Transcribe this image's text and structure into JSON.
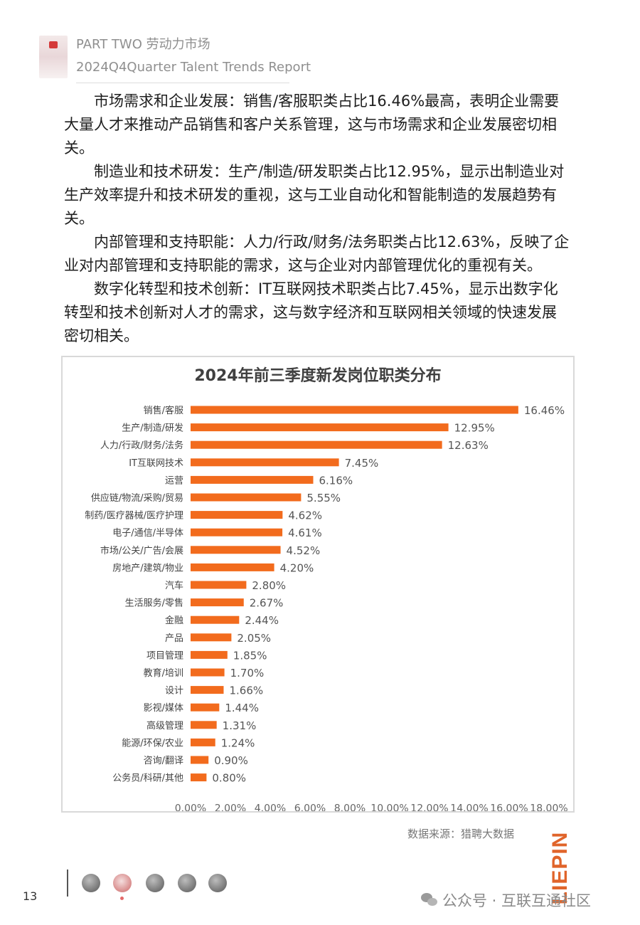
{
  "header": {
    "line1": "PART TWO 劳动力市场",
    "line2": "2024Q4Quarter Talent Trends Report"
  },
  "body": {
    "paragraphs": [
      "市场需求和企业发展：销售/客服职类占比16.46%最高，表明企业需要大量人才来推动产品销售和客户关系管理，这与市场需求和企业发展密切相关。",
      "制造业和技术研发：生产/制造/研发职类占比12.95%，显示出制造业对生产效率提升和技术研发的重视，这与工业自动化和智能制造的发展趋势有关。",
      "内部管理和支持职能：人力/行政/财务/法务职类占比12.63%，反映了企业对内部管理和支持职能的需求，这与企业对内部管理优化的重视有关。",
      "数字化转型和技术创新：IT互联网技术职类占比7.45%，显示出数字化转型和技术创新对人才的需求，这与数字经济和互联网相关领域的快速发展密切相关。"
    ]
  },
  "chart_data": {
    "type": "bar",
    "orientation": "horizontal",
    "title": "2024年前三季度新发岗位职类分布",
    "categories": [
      "销售/客服",
      "生产/制造/研发",
      "人力/行政/财务/法务",
      "IT互联网技术",
      "运营",
      "供应链/物流/采购/贸易",
      "制药/医疗器械/医疗护理",
      "电子/通信/半导体",
      "市场/公关/广告/会展",
      "房地产/建筑/物业",
      "汽车",
      "生活服务/零售",
      "金融",
      "产品",
      "项目管理",
      "教育/培训",
      "设计",
      "影视/媒体",
      "高级管理",
      "能源/环保/农业",
      "咨询/翻译",
      "公务员/科研/其他"
    ],
    "values": [
      16.46,
      12.95,
      12.63,
      7.45,
      6.16,
      5.55,
      4.62,
      4.61,
      4.52,
      4.2,
      2.8,
      2.67,
      2.44,
      2.05,
      1.85,
      1.7,
      1.66,
      1.44,
      1.31,
      1.24,
      0.9,
      0.8
    ],
    "data_labels": [
      "16.46%",
      "12.95%",
      "12.63%",
      "7.45%",
      "6.16%",
      "5.55%",
      "4.62%",
      "4.61%",
      "4.52%",
      "4.20%",
      "2.80%",
      "2.67%",
      "2.44%",
      "2.05%",
      "1.85%",
      "1.70%",
      "1.66%",
      "1.44%",
      "1.31%",
      "1.24%",
      "0.90%",
      "0.80%"
    ],
    "xlim": [
      0,
      18
    ],
    "xticks": [
      "0.00%",
      "2.00%",
      "4.00%",
      "6.00%",
      "8.00%",
      "10.00%",
      "12.00%",
      "14.00%",
      "16.00%",
      "18.00%"
    ],
    "xlabel": "",
    "ylabel": "",
    "grid": false,
    "bar_color": "#f26b1d"
  },
  "footer": {
    "source": "数据来源：猎聘大数据",
    "brand": "LIEPIN",
    "page_number": "13",
    "watermark": "公众号 · 互联互通社区"
  }
}
